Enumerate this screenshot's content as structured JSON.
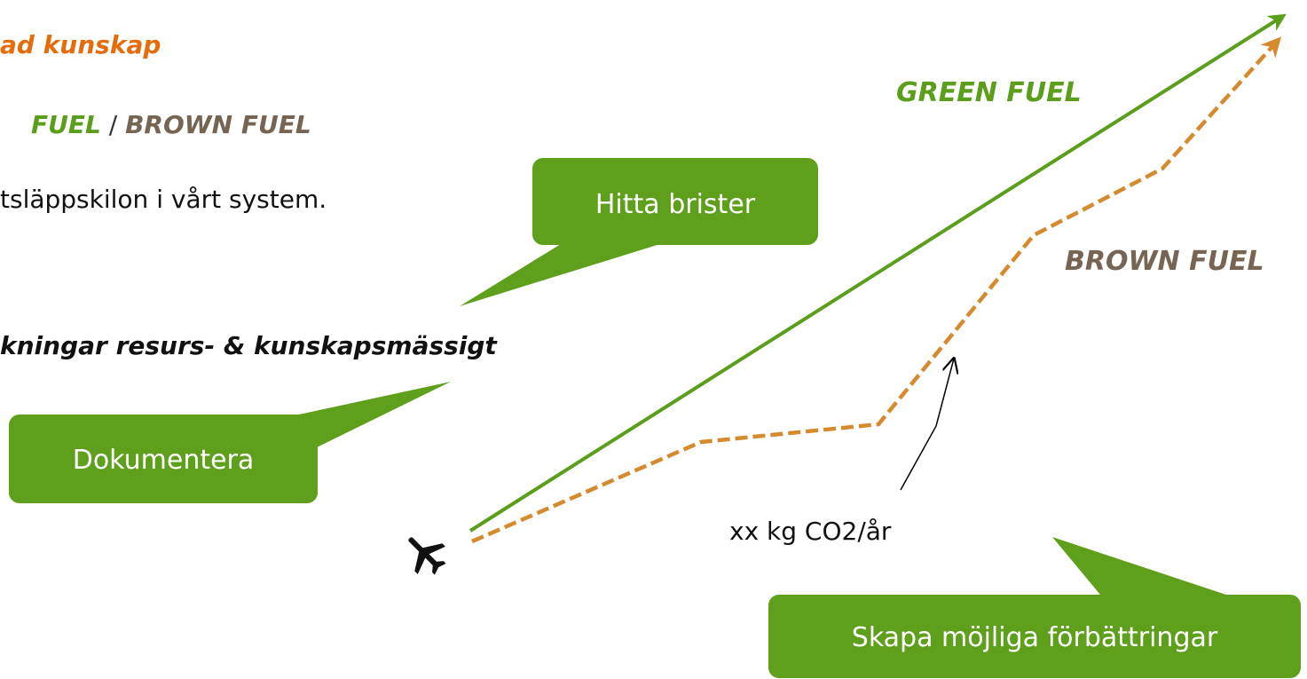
{
  "text_lines": {
    "heading": "ad kunskap",
    "fuel_green": "FUEL",
    "fuel_sep": " / ",
    "fuel_brown": "BROWN FUEL",
    "line3": "tsläppskilon i vårt system.",
    "line4": "kningar resurs- & kunskapsmässigt"
  },
  "callouts": {
    "hitta": "Hitta brister",
    "dokumentera": "Dokumentera",
    "skapa": "Skapa möjliga förbättringar"
  },
  "labels": {
    "green_fuel": "GREEN FUEL",
    "brown_fuel": "BROWN FUEL",
    "emission": "xx kg CO2/år"
  }
}
